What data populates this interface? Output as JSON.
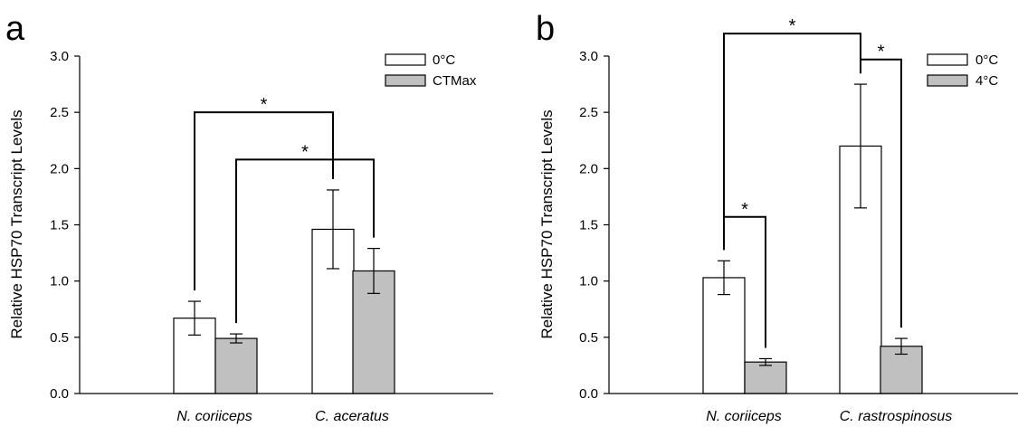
{
  "colors": {
    "bar0": "#ffffff",
    "bar1": "#c0c0c0",
    "axis": "#000000"
  },
  "chart_data": [
    {
      "type": "bar",
      "panel_label": "a",
      "categories": [
        "N. coriiceps",
        "C. aceratus"
      ],
      "series": [
        {
          "name": "0°C",
          "values": [
            0.67,
            1.46
          ],
          "errors": [
            0.15,
            0.35
          ]
        },
        {
          "name": "CTMax",
          "values": [
            0.49,
            1.09
          ],
          "errors": [
            0.04,
            0.2
          ]
        }
      ],
      "ylabel": "Relative HSP70 Transcript Levels",
      "ylim": [
        0,
        3.0
      ],
      "yticks": [
        "0.0",
        "0.5",
        "1.0",
        "1.5",
        "2.0",
        "2.5",
        "3.0"
      ],
      "legend_position": "top-right",
      "significance": [
        {
          "label": "*",
          "from": "N. coriiceps 0°C",
          "to": "C. aceratus 0°C",
          "y": 2.5
        },
        {
          "label": "*",
          "from": "N. coriiceps CTMax",
          "to": "C. aceratus CTMax",
          "y": 2.08
        }
      ]
    },
    {
      "type": "bar",
      "panel_label": "b",
      "categories": [
        "N. coriiceps",
        "C. rastrospinosus"
      ],
      "series": [
        {
          "name": "0°C",
          "values": [
            1.03,
            2.2
          ],
          "errors": [
            0.15,
            0.55
          ]
        },
        {
          "name": "4°C",
          "values": [
            0.28,
            0.42
          ],
          "errors": [
            0.03,
            0.07
          ]
        }
      ],
      "ylabel": "Relative HSP70 Transcript Levels",
      "ylim": [
        0,
        3.0
      ],
      "yticks": [
        "0.0",
        "0.5",
        "1.0",
        "1.5",
        "2.0",
        "2.5",
        "3.0"
      ],
      "legend_position": "top-right",
      "significance": [
        {
          "label": "*",
          "from": "N. coriiceps 0°C",
          "to": "C. rastrospinosus 0°C",
          "y": 3.2
        },
        {
          "label": "*",
          "from": "C. rastrospinosus 0°C",
          "to": "C. rastrospinosus 4°C",
          "y": 2.97
        },
        {
          "label": "*",
          "from": "N. coriiceps 0°C",
          "to": "N. coriiceps 4°C",
          "y": 1.57
        }
      ]
    }
  ]
}
